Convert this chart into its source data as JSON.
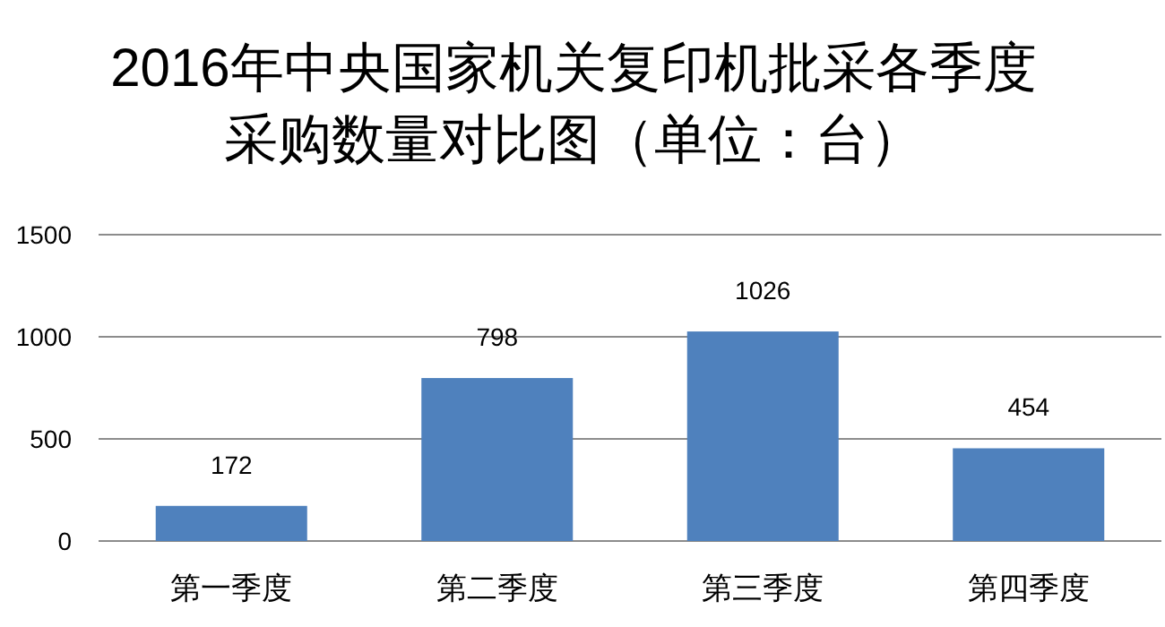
{
  "chart_data": {
    "type": "bar",
    "title": "2016年中央国家机关复印机批采各季度",
    "subtitle": "采购数量对比图（单位：台）",
    "categories": [
      "第一季度",
      "第二季度",
      "第三季度",
      "第四季度"
    ],
    "values": [
      172,
      798,
      1026,
      454
    ],
    "color": "#4f81bd",
    "ylim": [
      0,
      1500
    ],
    "yticks": [
      0,
      500,
      1000,
      1500
    ],
    "grid": "y",
    "data_labels": true
  }
}
